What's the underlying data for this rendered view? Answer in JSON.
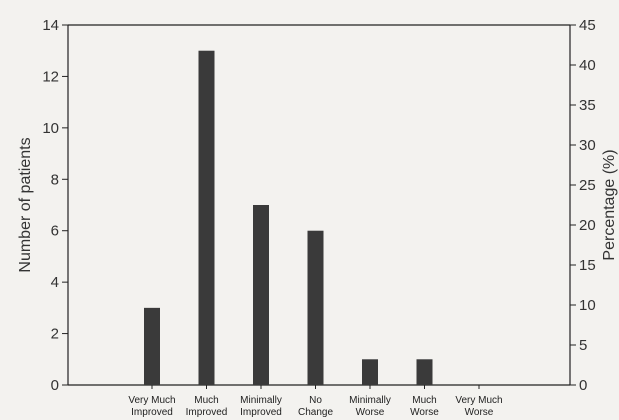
{
  "chart_data": {
    "type": "bar",
    "categories": [
      [
        "Very Much",
        "Improved"
      ],
      [
        "Much",
        "Improved"
      ],
      [
        "Minimally",
        "Improved"
      ],
      [
        "No",
        "Change"
      ],
      [
        "Minimally",
        "Worse"
      ],
      [
        "Much",
        "Worse"
      ],
      [
        "Very Much",
        "Worse"
      ]
    ],
    "values": [
      3,
      13,
      7,
      6,
      1,
      1,
      0
    ],
    "ylabel": "Number of patients",
    "y2label": "Percentage (%)",
    "ylim": [
      0,
      14
    ],
    "y2lim": [
      0,
      45
    ],
    "yticks": [
      0,
      2,
      4,
      6,
      8,
      10,
      12,
      14
    ],
    "y2ticks": [
      0,
      5,
      10,
      15,
      20,
      25,
      30,
      35,
      40,
      45
    ],
    "bar_color": "#3a3a3a",
    "grid": false
  }
}
